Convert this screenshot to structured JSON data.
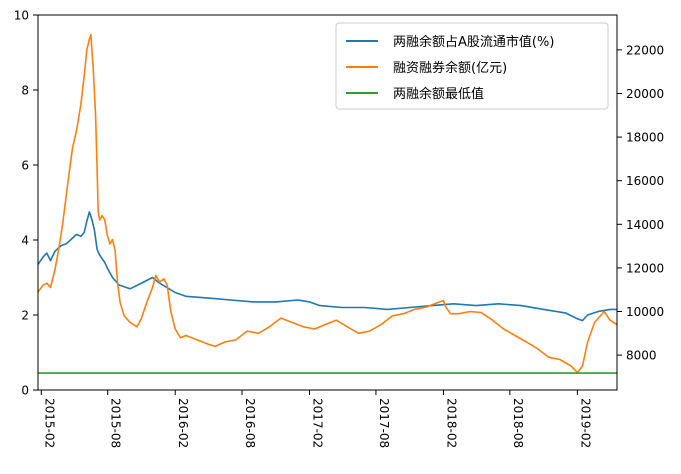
{
  "chart_data": {
    "type": "line",
    "colors": {
      "ratio": "#1f77b4",
      "balance": "#ff7f0e",
      "min": "#2ca02c"
    },
    "legend_position": "top-right",
    "grid": false,
    "x_ticks": [
      "2015-02",
      "2015-08",
      "2016-02",
      "2016-08",
      "2017-02",
      "2017-08",
      "2018-02",
      "2018-08",
      "2019-02"
    ],
    "y_left": {
      "ylim": [
        0,
        10
      ],
      "ticks": [
        "0",
        "2",
        "4",
        "6",
        "8",
        "10"
      ]
    },
    "y_right": {
      "ylim": [
        6400,
        23600
      ],
      "ticks": [
        "8000",
        "10000",
        "12000",
        "14000",
        "16000",
        "18000",
        "20000",
        "22000"
      ]
    },
    "series": [
      {
        "name": "两融余额占A股流通市值(%)",
        "axis": "left",
        "points": [
          [
            "2015-01-23",
            3.35
          ],
          [
            "2015-02-06",
            3.55
          ],
          [
            "2015-02-16",
            3.65
          ],
          [
            "2015-02-26",
            3.45
          ],
          [
            "2015-03-10",
            3.7
          ],
          [
            "2015-03-27",
            3.85
          ],
          [
            "2015-04-10",
            3.9
          ],
          [
            "2015-04-27",
            4.05
          ],
          [
            "2015-05-08",
            4.15
          ],
          [
            "2015-05-20",
            4.1
          ],
          [
            "2015-05-29",
            4.2
          ],
          [
            "2015-06-05",
            4.5
          ],
          [
            "2015-06-12",
            4.75
          ],
          [
            "2015-06-19",
            4.55
          ],
          [
            "2015-06-26",
            4.25
          ],
          [
            "2015-07-03",
            3.75
          ],
          [
            "2015-07-10",
            3.6
          ],
          [
            "2015-07-17",
            3.5
          ],
          [
            "2015-07-24",
            3.4
          ],
          [
            "2015-07-31",
            3.25
          ],
          [
            "2015-08-14",
            3.0
          ],
          [
            "2015-09-01",
            2.8
          ],
          [
            "2015-10-01",
            2.7
          ],
          [
            "2015-11-01",
            2.85
          ],
          [
            "2015-12-01",
            3.0
          ],
          [
            "2015-12-20",
            2.85
          ],
          [
            "2016-01-15",
            2.7
          ],
          [
            "2016-02-01",
            2.6
          ],
          [
            "2016-03-01",
            2.5
          ],
          [
            "2016-05-01",
            2.45
          ],
          [
            "2016-07-01",
            2.4
          ],
          [
            "2016-09-01",
            2.35
          ],
          [
            "2016-11-01",
            2.35
          ],
          [
            "2017-01-01",
            2.4
          ],
          [
            "2017-02-01",
            2.35
          ],
          [
            "2017-03-01",
            2.25
          ],
          [
            "2017-05-01",
            2.2
          ],
          [
            "2017-07-01",
            2.2
          ],
          [
            "2017-09-01",
            2.15
          ],
          [
            "2017-11-01",
            2.2
          ],
          [
            "2018-01-01",
            2.25
          ],
          [
            "2018-03-01",
            2.3
          ],
          [
            "2018-05-01",
            2.25
          ],
          [
            "2018-07-01",
            2.3
          ],
          [
            "2018-09-01",
            2.25
          ],
          [
            "2018-11-01",
            2.15
          ],
          [
            "2019-01-01",
            2.05
          ],
          [
            "2019-02-01",
            1.9
          ],
          [
            "2019-02-15",
            1.85
          ],
          [
            "2019-03-01",
            2.0
          ],
          [
            "2019-04-01",
            2.1
          ],
          [
            "2019-05-01",
            2.15
          ],
          [
            "2019-05-20",
            2.15
          ]
        ]
      },
      {
        "name": "融资融券余额(亿元)",
        "axis": "right",
        "points": [
          [
            "2015-01-23",
            10900
          ],
          [
            "2015-02-06",
            11200
          ],
          [
            "2015-02-16",
            11300
          ],
          [
            "2015-02-26",
            11100
          ],
          [
            "2015-03-10",
            11900
          ],
          [
            "2015-03-20",
            12800
          ],
          [
            "2015-03-31",
            14000
          ],
          [
            "2015-04-15",
            16000
          ],
          [
            "2015-04-27",
            17500
          ],
          [
            "2015-05-08",
            18300
          ],
          [
            "2015-05-20",
            19500
          ],
          [
            "2015-05-29",
            20800
          ],
          [
            "2015-06-05",
            22000
          ],
          [
            "2015-06-12",
            22500
          ],
          [
            "2015-06-16",
            22700
          ],
          [
            "2015-06-22",
            21300
          ],
          [
            "2015-06-29",
            19000
          ],
          [
            "2015-07-03",
            16500
          ],
          [
            "2015-07-06",
            14600
          ],
          [
            "2015-07-10",
            14200
          ],
          [
            "2015-07-17",
            14400
          ],
          [
            "2015-07-24",
            14200
          ],
          [
            "2015-07-31",
            13500
          ],
          [
            "2015-08-07",
            13100
          ],
          [
            "2015-08-14",
            13300
          ],
          [
            "2015-08-21",
            12800
          ],
          [
            "2015-08-28",
            11300
          ],
          [
            "2015-09-04",
            10400
          ],
          [
            "2015-09-15",
            9800
          ],
          [
            "2015-10-01",
            9500
          ],
          [
            "2015-10-20",
            9300
          ],
          [
            "2015-11-01",
            9700
          ],
          [
            "2015-11-15",
            10400
          ],
          [
            "2015-12-01",
            11100
          ],
          [
            "2015-12-10",
            11650
          ],
          [
            "2015-12-20",
            11350
          ],
          [
            "2016-01-01",
            11500
          ],
          [
            "2016-01-10",
            11200
          ],
          [
            "2016-01-20",
            10000
          ],
          [
            "2016-02-01",
            9200
          ],
          [
            "2016-02-15",
            8800
          ],
          [
            "2016-03-01",
            8900
          ],
          [
            "2016-04-01",
            8700
          ],
          [
            "2016-05-01",
            8500
          ],
          [
            "2016-05-20",
            8400
          ],
          [
            "2016-06-15",
            8600
          ],
          [
            "2016-07-15",
            8700
          ],
          [
            "2016-08-15",
            9100
          ],
          [
            "2016-09-15",
            9000
          ],
          [
            "2016-10-15",
            9300
          ],
          [
            "2016-11-15",
            9700
          ],
          [
            "2016-12-15",
            9500
          ],
          [
            "2017-01-15",
            9300
          ],
          [
            "2017-02-15",
            9200
          ],
          [
            "2017-03-15",
            9400
          ],
          [
            "2017-04-15",
            9600
          ],
          [
            "2017-05-15",
            9300
          ],
          [
            "2017-06-15",
            9000
          ],
          [
            "2017-07-15",
            9100
          ],
          [
            "2017-08-15",
            9400
          ],
          [
            "2017-09-15",
            9800
          ],
          [
            "2017-10-15",
            9900
          ],
          [
            "2017-11-15",
            10100
          ],
          [
            "2017-12-15",
            10200
          ],
          [
            "2018-01-15",
            10400
          ],
          [
            "2018-02-01",
            10500
          ],
          [
            "2018-02-08",
            10200
          ],
          [
            "2018-02-20",
            9900
          ],
          [
            "2018-03-15",
            9900
          ],
          [
            "2018-04-15",
            10000
          ],
          [
            "2018-05-15",
            9950
          ],
          [
            "2018-06-15",
            9600
          ],
          [
            "2018-07-15",
            9200
          ],
          [
            "2018-08-15",
            8900
          ],
          [
            "2018-09-15",
            8600
          ],
          [
            "2018-10-15",
            8300
          ],
          [
            "2018-11-15",
            7900
          ],
          [
            "2018-12-15",
            7800
          ],
          [
            "2019-01-15",
            7500
          ],
          [
            "2019-02-01",
            7200
          ],
          [
            "2019-02-15",
            7500
          ],
          [
            "2019-03-01",
            8600
          ],
          [
            "2019-03-20",
            9500
          ],
          [
            "2019-04-15",
            10000
          ],
          [
            "2019-05-01",
            9600
          ],
          [
            "2019-05-20",
            9400
          ]
        ]
      },
      {
        "name": "两融余额最低值",
        "axis": "left",
        "points": [
          [
            "2015-01-23",
            0.45
          ],
          [
            "2019-05-20",
            0.45
          ]
        ]
      }
    ]
  }
}
